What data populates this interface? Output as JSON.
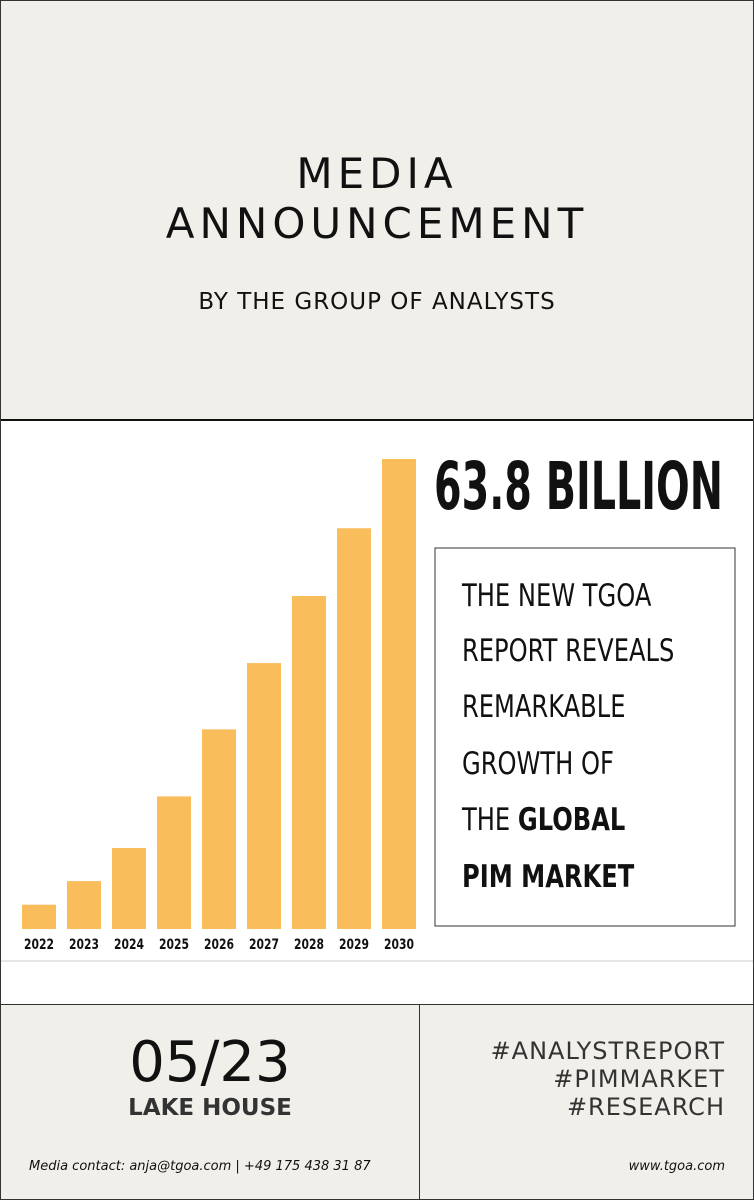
{
  "header": {
    "title_lines": [
      "MEDIA",
      "ANNOUNCEMENT"
    ],
    "subtitle": "BY THE GROUP OF ANALYSTS"
  },
  "chart_data": {
    "type": "bar",
    "categories": [
      "2022",
      "2023",
      "2024",
      "2025",
      "2026",
      "2027",
      "2028",
      "2029",
      "2030"
    ],
    "values": [
      3.3,
      6.5,
      11.0,
      18.0,
      27.1,
      36.1,
      45.2,
      54.4,
      63.8
    ],
    "color": "#f9bd5c"
  },
  "headline": "63.8 BILLION",
  "report": {
    "plain_lines": [
      "THE NEW TGOA",
      "REPORT REVEALS",
      "REMARKABLE",
      "GROWTH OF",
      "THE"
    ],
    "bold_lines": [
      "GLOBAL",
      "PIM MARKET"
    ]
  },
  "footer": {
    "date": "05/23",
    "place": "LAKE HOUSE",
    "hashtags": [
      "#ANALYSTREPORT",
      "#PIMMARKET",
      "#RESEARCH"
    ],
    "contact": "Media contact: anja@tgoa.com | +49 175 438 31 87",
    "website": "www.tgoa.com"
  }
}
